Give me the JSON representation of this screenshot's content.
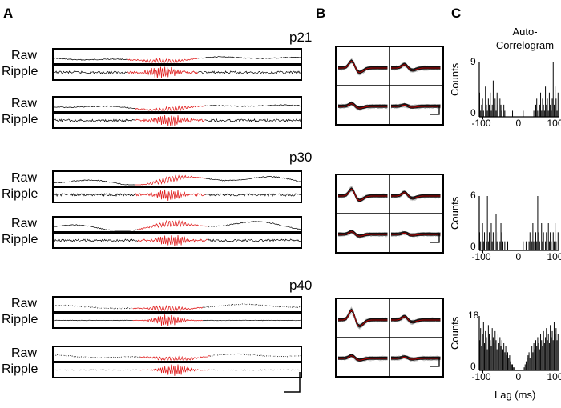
{
  "panels": {
    "a": "A",
    "b": "B",
    "c": "C"
  },
  "ages": [
    "p21",
    "p30",
    "p40"
  ],
  "row_labels": {
    "raw": "Raw",
    "ripple": "Ripple"
  },
  "autocorrelogram": {
    "title_line1": "Auto-",
    "title_line2": "Correlogram",
    "ylabel": "Counts",
    "xlabel": "Lag (ms)",
    "xticks": [
      "-100",
      "0",
      "100"
    ],
    "ymax_labels": [
      "9",
      "6",
      "18"
    ],
    "ymin_label": "0"
  },
  "colors": {
    "trace": "#000000",
    "highlight": "#e02020",
    "mean": "#b00000",
    "waveforms": "#9a9a9a"
  },
  "chart_data": [
    {
      "type": "bar",
      "title": "Auto-Correlogram p21",
      "xlabel": "Lag (ms)",
      "ylabel": "Counts",
      "xlim": [
        -110,
        110
      ],
      "ylim": [
        0,
        9
      ],
      "values": [
        4,
        1,
        2,
        3,
        1,
        0,
        5,
        2,
        1,
        3,
        2,
        4,
        1,
        2,
        6,
        2,
        3,
        1,
        4,
        2,
        0,
        3,
        2,
        1,
        0,
        2,
        1,
        0,
        0,
        0,
        0,
        0,
        0,
        0,
        1,
        0,
        0,
        0,
        0,
        0,
        0,
        0,
        0,
        0,
        0,
        1,
        0,
        0,
        0,
        0,
        0,
        0,
        0,
        0,
        0,
        0,
        1,
        0,
        2,
        3,
        1,
        0,
        2,
        4,
        1,
        3,
        2,
        1,
        5,
        2,
        3,
        1,
        4,
        2,
        1,
        3,
        9,
        2,
        5,
        3,
        1,
        4
      ]
    },
    {
      "type": "bar",
      "title": "Auto-Correlogram p30",
      "xlabel": "Lag (ms)",
      "ylabel": "Counts",
      "xlim": [
        -110,
        110
      ],
      "ylim": [
        0,
        6
      ],
      "values": [
        2,
        1,
        0,
        3,
        1,
        2,
        0,
        1,
        6,
        1,
        2,
        0,
        3,
        1,
        2,
        1,
        0,
        4,
        1,
        2,
        0,
        1,
        3,
        2,
        1,
        0,
        1,
        0,
        0,
        1,
        0,
        0,
        0,
        0,
        0,
        0,
        0,
        0,
        0,
        0,
        0,
        0,
        0,
        0,
        0,
        1,
        0,
        0,
        1,
        0,
        0,
        1,
        2,
        0,
        1,
        3,
        1,
        0,
        2,
        1,
        6,
        2,
        1,
        0,
        3,
        1,
        2,
        0,
        1,
        2,
        0,
        3,
        1,
        2,
        1,
        0,
        2,
        1,
        3,
        1,
        0,
        2
      ]
    },
    {
      "type": "bar",
      "title": "Auto-Correlogram p40",
      "xlabel": "Lag (ms)",
      "ylabel": "Counts",
      "xlim": [
        -110,
        110
      ],
      "ylim": [
        0,
        18
      ],
      "values": [
        10,
        14,
        8,
        12,
        16,
        9,
        13,
        11,
        7,
        15,
        12,
        10,
        8,
        14,
        11,
        9,
        13,
        10,
        7,
        12,
        9,
        11,
        8,
        10,
        7,
        9,
        6,
        8,
        5,
        6,
        4,
        5,
        3,
        2,
        2,
        1,
        1,
        0,
        0,
        0,
        0,
        0,
        0,
        0,
        0,
        0,
        1,
        2,
        3,
        4,
        5,
        6,
        4,
        7,
        8,
        6,
        9,
        7,
        10,
        8,
        11,
        9,
        7,
        12,
        10,
        8,
        13,
        9,
        11,
        14,
        10,
        12,
        9,
        15,
        11,
        13,
        10,
        16,
        12,
        14,
        10,
        12
      ]
    }
  ]
}
